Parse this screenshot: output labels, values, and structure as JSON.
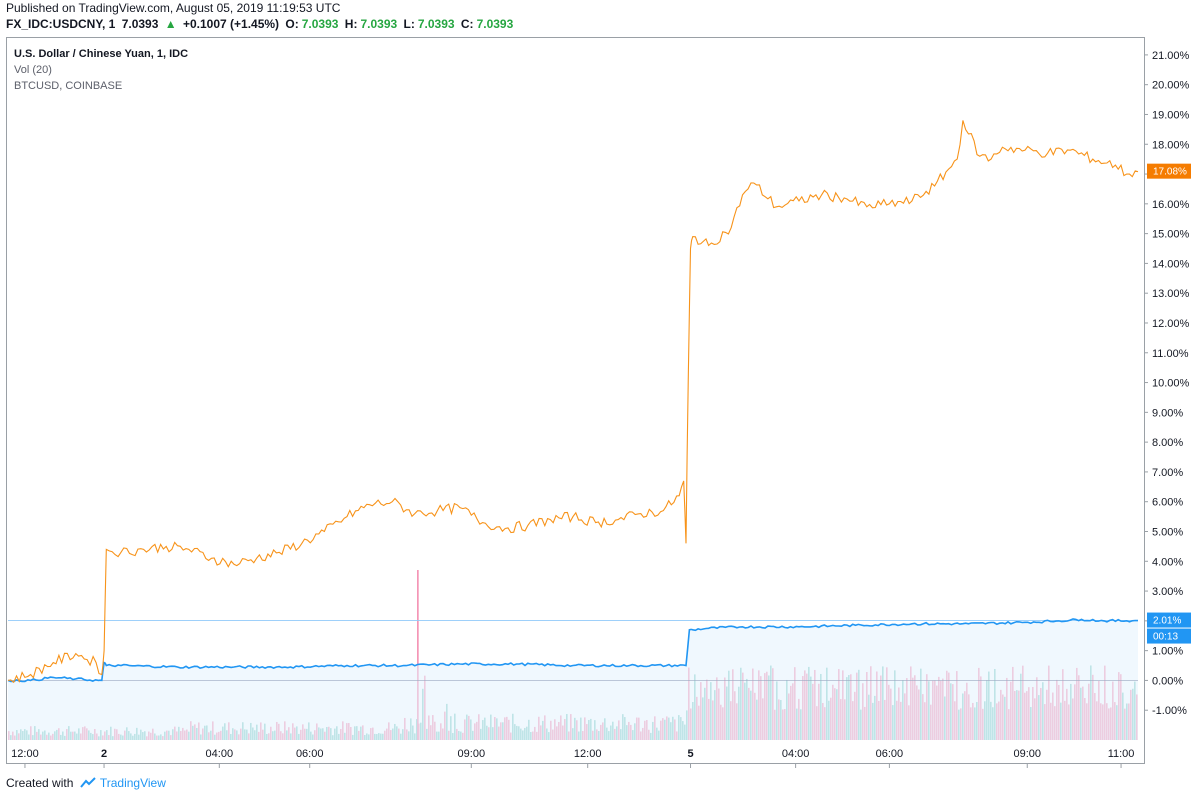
{
  "header": {
    "published": "Published on TradingView.com, August 05, 2019 11:19:53 UTC",
    "symbol": "FX_IDC:USDCNY, 1",
    "price": "7.0393",
    "change": "+0.1007 (+1.45%)",
    "open_label": "O:",
    "open": "7.0393",
    "high_label": "H:",
    "high": "7.0393",
    "low_label": "L:",
    "low": "7.0393",
    "close_label": "C:",
    "close": "7.0393"
  },
  "legend": {
    "main": "U.S. Dollar / Chinese Yuan, 1, IDC",
    "vol": "Vol (20)",
    "compare": "BTCUSD, COINBASE"
  },
  "footer": {
    "created_with": "Created with",
    "brand": "TradingView"
  },
  "colors": {
    "btc": "#f7931a",
    "usdcny": "#2196f3",
    "vol_up": "#80cbc4",
    "vol_down": "#f48fb1",
    "badge_btc": "#f57c00",
    "badge_usdcny": "#2196f3"
  },
  "badges": {
    "btc_value": "17.08%",
    "usdcny_value": "2.01%",
    "usdcny_timer": "00:13"
  },
  "chart_data": {
    "type": "line",
    "title": "U.S. Dollar / Chinese Yuan, 1, IDC",
    "ylim": [
      -2.0,
      21.5
    ],
    "y_ticks": [
      "21.00%",
      "20.00%",
      "19.00%",
      "18.00%",
      "17.00%",
      "16.00%",
      "15.00%",
      "14.00%",
      "13.00%",
      "12.00%",
      "11.00%",
      "10.00%",
      "9.00%",
      "8.00%",
      "7.00%",
      "6.00%",
      "5.00%",
      "4.00%",
      "3.00%",
      "2.00%",
      "1.00%",
      "0.00%",
      "-1.00%"
    ],
    "y_tick_values": [
      21,
      20,
      19,
      18,
      17,
      16,
      15,
      14,
      13,
      12,
      11,
      10,
      9,
      8,
      7,
      6,
      5,
      4,
      3,
      2,
      1,
      0,
      -1
    ],
    "x_ticks": [
      {
        "label": "12:00",
        "t": 0.015,
        "bold": false
      },
      {
        "label": "2",
        "t": 0.085,
        "bold": true
      },
      {
        "label": "04:00",
        "t": 0.187,
        "bold": false
      },
      {
        "label": "06:00",
        "t": 0.267,
        "bold": false
      },
      {
        "label": "09:00",
        "t": 0.41,
        "bold": false
      },
      {
        "label": "12:00",
        "t": 0.513,
        "bold": false
      },
      {
        "label": "5",
        "t": 0.604,
        "bold": true
      },
      {
        "label": "04:00",
        "t": 0.697,
        "bold": false
      },
      {
        "label": "06:00",
        "t": 0.78,
        "bold": false
      },
      {
        "label": "09:00",
        "t": 0.902,
        "bold": false
      },
      {
        "label": "11:00",
        "t": 0.985,
        "bold": false
      }
    ],
    "series": [
      {
        "name": "BTCUSD, COINBASE",
        "x": [
          0,
          0.02,
          0.04,
          0.06,
          0.07,
          0.078,
          0.083,
          0.085,
          0.087,
          0.1,
          0.12,
          0.14,
          0.16,
          0.18,
          0.2,
          0.22,
          0.24,
          0.26,
          0.28,
          0.3,
          0.32,
          0.34,
          0.36,
          0.38,
          0.4,
          0.42,
          0.44,
          0.46,
          0.48,
          0.5,
          0.52,
          0.54,
          0.56,
          0.58,
          0.594,
          0.598,
          0.6,
          0.602,
          0.604,
          0.606,
          0.62,
          0.64,
          0.65,
          0.66,
          0.68,
          0.7,
          0.72,
          0.74,
          0.76,
          0.78,
          0.8,
          0.82,
          0.84,
          0.845,
          0.86,
          0.87,
          0.88,
          0.9,
          0.92,
          0.94,
          0.96,
          0.98,
          0.99,
          1.0
        ],
        "values": [
          0.0,
          0.2,
          0.6,
          0.9,
          0.7,
          0.6,
          0.2,
          1.0,
          4.4,
          4.3,
          4.4,
          4.5,
          4.4,
          4.1,
          3.9,
          4.1,
          4.3,
          4.6,
          5.0,
          5.5,
          5.9,
          6.0,
          5.6,
          5.7,
          5.8,
          5.3,
          5.1,
          5.2,
          5.4,
          5.5,
          5.3,
          5.4,
          5.6,
          5.7,
          6.2,
          6.7,
          4.6,
          10.2,
          14.5,
          14.9,
          14.6,
          15.2,
          16.3,
          16.7,
          15.9,
          16.1,
          16.3,
          16.2,
          15.9,
          16.0,
          16.1,
          16.6,
          17.5,
          18.8,
          17.6,
          17.5,
          17.9,
          17.8,
          17.7,
          17.8,
          17.5,
          17.3,
          17.0,
          17.08
        ]
      },
      {
        "name": "U.S. Dollar / Chinese Yuan, 1, IDC",
        "x": [
          0,
          0.02,
          0.04,
          0.06,
          0.08,
          0.083,
          0.085,
          0.087,
          0.1,
          0.15,
          0.2,
          0.25,
          0.3,
          0.35,
          0.4,
          0.45,
          0.5,
          0.55,
          0.6,
          0.603,
          0.606,
          0.62,
          0.65,
          0.7,
          0.75,
          0.8,
          0.85,
          0.9,
          0.93,
          0.95,
          0.97,
          1.0
        ],
        "values": [
          0.0,
          0.0,
          0.1,
          0.05,
          0.0,
          0.0,
          0.6,
          0.5,
          0.5,
          0.45,
          0.45,
          0.45,
          0.5,
          0.5,
          0.55,
          0.55,
          0.5,
          0.5,
          0.5,
          1.7,
          1.7,
          1.75,
          1.8,
          1.8,
          1.85,
          1.9,
          1.9,
          1.95,
          2.0,
          2.05,
          2.0,
          2.01
        ]
      }
    ]
  }
}
